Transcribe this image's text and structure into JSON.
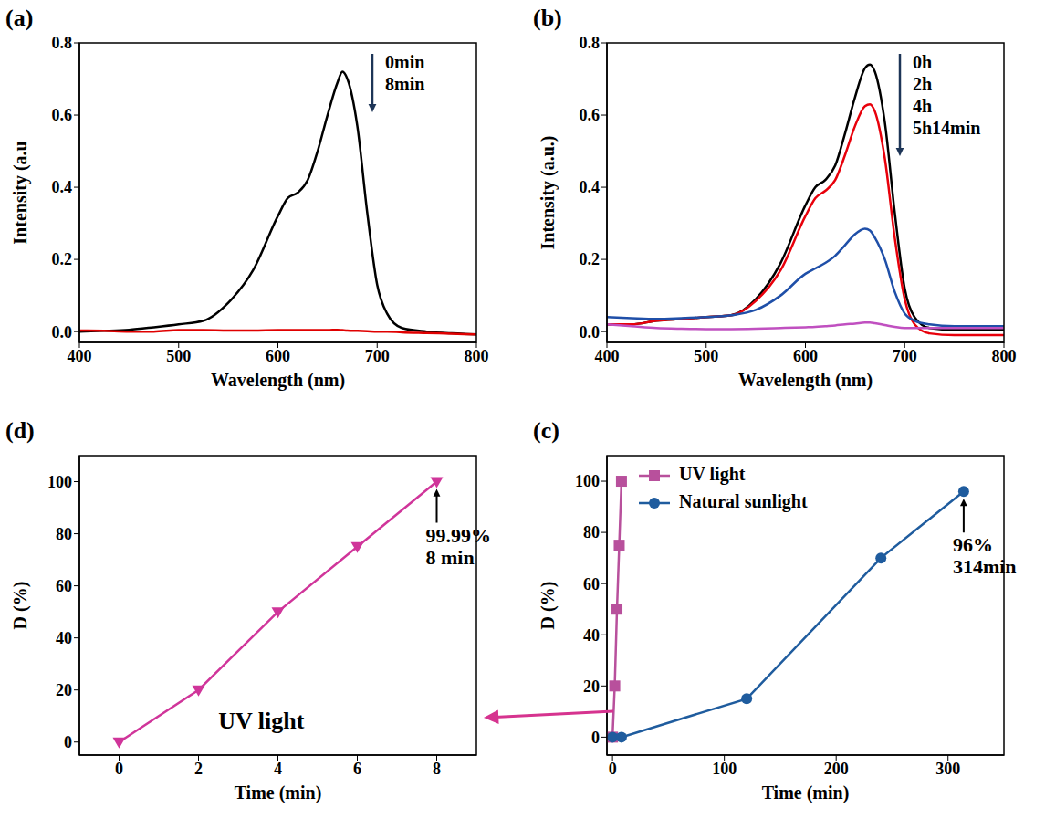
{
  "chart_data": [
    {
      "type": "line",
      "title": "(a)",
      "x_label": "Wavelength (nm)",
      "y_label": "Intensity (a.u",
      "xlim": [
        400,
        800
      ],
      "xticks": [
        400,
        500,
        600,
        700,
        800
      ],
      "ylim": [
        -0.03,
        0.8
      ],
      "yticks": [
        {
          "value": 0,
          "label": "0.0"
        },
        0.2,
        0.4,
        0.6,
        0.8
      ],
      "legend": "upper right",
      "x": [
        400,
        425,
        450,
        475,
        500,
        525,
        550,
        575,
        600,
        610,
        620,
        630,
        640,
        650,
        660,
        665,
        670,
        680,
        690,
        700,
        710,
        725,
        750,
        775,
        800
      ],
      "series": [
        {
          "name": "0min",
          "color": "#000000",
          "values": [
            0.0,
            0.002,
            0.005,
            0.012,
            0.02,
            0.03,
            0.08,
            0.17,
            0.32,
            0.37,
            0.385,
            0.42,
            0.5,
            0.6,
            0.69,
            0.72,
            0.7,
            0.57,
            0.33,
            0.13,
            0.05,
            0.01,
            0.0,
            -0.005,
            -0.008
          ]
        },
        {
          "name": "8min",
          "color": "#e00000",
          "values": [
            0.003,
            0.002,
            0.0,
            0.0,
            0.004,
            0.004,
            0.003,
            0.003,
            0.004,
            0.004,
            0.004,
            0.004,
            0.004,
            0.004,
            0.005,
            0.004,
            0.003,
            0.002,
            0.001,
            0.0,
            0.0,
            -0.002,
            -0.004,
            -0.006,
            -0.008
          ]
        }
      ]
    },
    {
      "type": "line",
      "title": "(b)",
      "x_label": "Wavelength (nm)",
      "y_label": "Intensity (a.u.)",
      "xlim": [
        400,
        800
      ],
      "xticks": [
        400,
        500,
        600,
        700,
        800
      ],
      "ylim": [
        -0.03,
        0.8
      ],
      "yticks": [
        {
          "value": 0,
          "label": "0.0"
        },
        0.2,
        0.4,
        0.6,
        0.8
      ],
      "legend": "upper right",
      "x": [
        400,
        425,
        450,
        475,
        500,
        525,
        550,
        575,
        600,
        610,
        620,
        630,
        640,
        650,
        660,
        665,
        670,
        680,
        690,
        700,
        710,
        725,
        750,
        775,
        800
      ],
      "series": [
        {
          "name": "0h",
          "color": "#000000",
          "values": [
            0.02,
            0.02,
            0.03,
            0.035,
            0.04,
            0.045,
            0.09,
            0.19,
            0.35,
            0.4,
            0.42,
            0.46,
            0.55,
            0.65,
            0.73,
            0.74,
            0.72,
            0.58,
            0.33,
            0.12,
            0.04,
            0.01,
            0.005,
            0.005,
            0.005
          ]
        },
        {
          "name": "2h",
          "color": "#e8000b",
          "values": [
            0.02,
            0.02,
            0.03,
            0.035,
            0.04,
            0.045,
            0.085,
            0.17,
            0.32,
            0.37,
            0.39,
            0.42,
            0.49,
            0.57,
            0.625,
            0.63,
            0.61,
            0.48,
            0.26,
            0.09,
            0.02,
            -0.005,
            -0.01,
            -0.01,
            -0.01
          ]
        },
        {
          "name": "4h",
          "color": "#1f4fa8",
          "values": [
            0.04,
            0.037,
            0.035,
            0.037,
            0.04,
            0.045,
            0.06,
            0.1,
            0.16,
            0.175,
            0.19,
            0.21,
            0.24,
            0.27,
            0.285,
            0.28,
            0.26,
            0.2,
            0.11,
            0.05,
            0.03,
            0.02,
            0.015,
            0.015,
            0.015
          ]
        },
        {
          "name": "5h14min",
          "color": "#c050c0",
          "values": [
            0.02,
            0.015,
            0.01,
            0.008,
            0.007,
            0.007,
            0.008,
            0.01,
            0.012,
            0.013,
            0.015,
            0.017,
            0.02,
            0.022,
            0.025,
            0.025,
            0.023,
            0.018,
            0.013,
            0.01,
            0.01,
            0.01,
            0.01,
            0.01,
            0.01
          ]
        }
      ]
    },
    {
      "type": "line",
      "title": "(c)",
      "x_label": "Time (min)",
      "y_label": "D (%)",
      "xlim": [
        -5,
        350
      ],
      "xticks": [
        0,
        100,
        200,
        300
      ],
      "ylim": [
        -7,
        110
      ],
      "yticks": [
        0,
        20,
        40,
        60,
        80,
        100
      ],
      "legend": "upper left",
      "series": [
        {
          "name": "UV light",
          "color": "#b8509c",
          "marker": "square",
          "x": [
            0,
            2,
            4,
            6,
            8
          ],
          "values": [
            0,
            20,
            50,
            75,
            100
          ]
        },
        {
          "name": "Natural sunlight",
          "color": "#1f5c9e",
          "marker": "circle",
          "x": [
            0,
            8,
            120,
            240,
            314
          ],
          "values": [
            0,
            0,
            15,
            70,
            96
          ]
        }
      ],
      "annotations": [
        {
          "text": [
            "96%",
            "314min"
          ],
          "x": 314,
          "y": 96
        }
      ]
    },
    {
      "type": "line",
      "title": "(d)",
      "x_label": "Time (min)",
      "y_label": "D (%)",
      "xlim": [
        -1,
        9
      ],
      "xticks": [
        0,
        2,
        4,
        6,
        8
      ],
      "ylim": [
        -5,
        110
      ],
      "yticks": [
        0,
        20,
        40,
        60,
        80,
        100
      ],
      "series": [
        {
          "color": "#d0359a",
          "marker": "triangle-down",
          "x": [
            0,
            2,
            4,
            6,
            8
          ],
          "values": [
            0,
            20,
            50,
            75,
            100
          ]
        }
      ],
      "annotations": [
        {
          "text": [
            "99.99%",
            "8 min"
          ],
          "x": 8,
          "y": 100
        },
        {
          "text": "UV light",
          "x": 2.5,
          "y": 5
        }
      ]
    }
  ]
}
